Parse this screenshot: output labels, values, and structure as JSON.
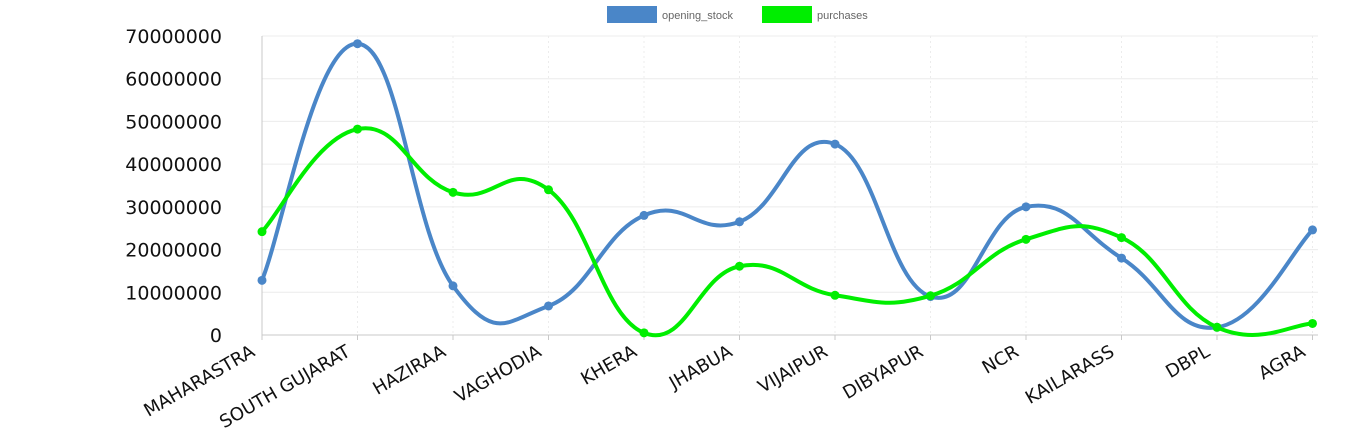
{
  "chart_data": {
    "type": "line",
    "title": "",
    "xlabel": "",
    "ylabel": "",
    "categories": [
      "MAHARASTRA",
      "SOUTH GUJARAT",
      "HAZIRAA",
      "VAGHODIA",
      "KHERA",
      "JHABUA",
      "VIJAIPUR",
      "DIBYAPUR",
      "NCR",
      "KAILARASS",
      "DBPL",
      "AGRA"
    ],
    "ylim": [
      0,
      70000000
    ],
    "yticks": [
      0,
      10000000,
      20000000,
      30000000,
      40000000,
      50000000,
      60000000,
      70000000
    ],
    "legend_position": "top-center",
    "grid": true,
    "series": [
      {
        "name": "opening_stock",
        "color": "#4a86c8",
        "values": [
          12800000,
          68200000,
          11500000,
          6800000,
          28000000,
          26500000,
          44700000,
          9000000,
          30000000,
          18000000,
          1800000,
          24600000
        ]
      },
      {
        "name": "purchases",
        "color": "#00ee00",
        "values": [
          24200000,
          48200000,
          33400000,
          34000000,
          500000,
          16100000,
          9300000,
          9200000,
          22400000,
          22800000,
          1800000,
          2700000
        ]
      }
    ]
  }
}
